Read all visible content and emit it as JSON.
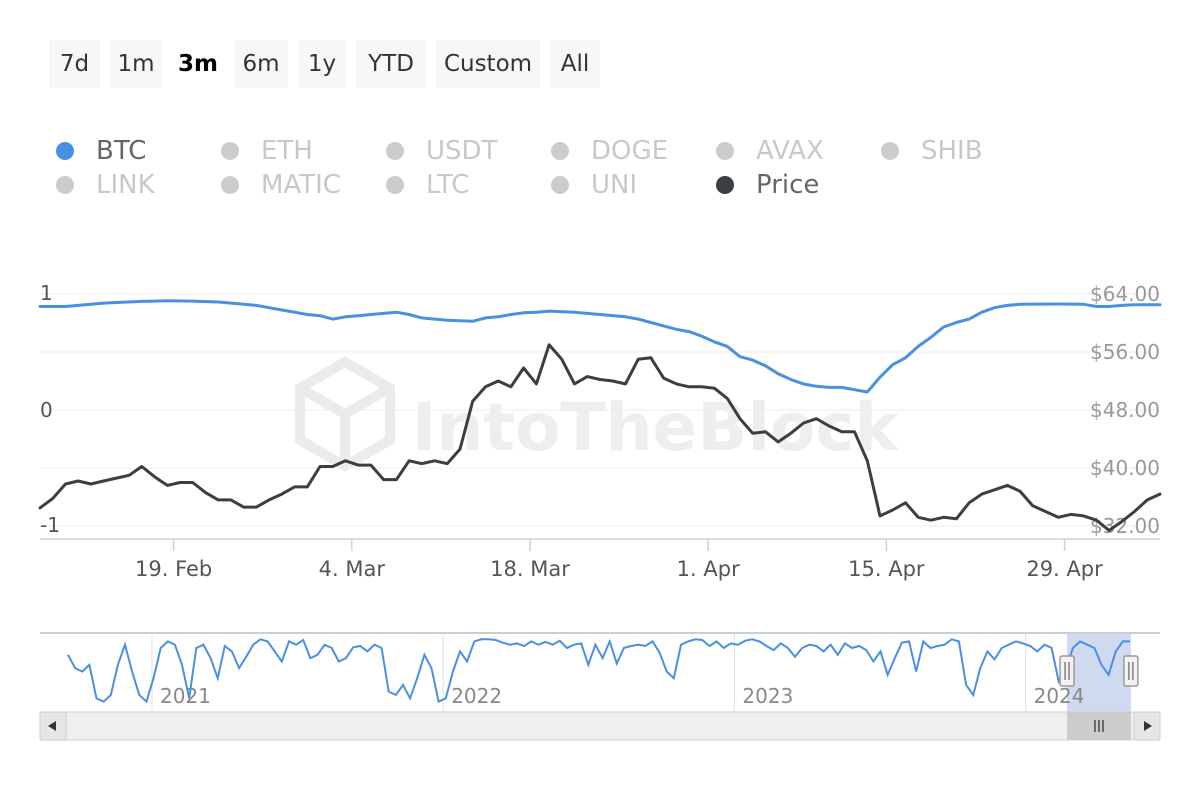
{
  "range_selector": {
    "buttons": [
      "7d",
      "1m",
      "3m",
      "6m",
      "1y",
      "YTD",
      "Custom",
      "All"
    ],
    "selected": "3m"
  },
  "legend": {
    "items": [
      {
        "label": "BTC",
        "color": "#4a90e2",
        "active": true
      },
      {
        "label": "ETH",
        "color": "#cccccc",
        "active": false
      },
      {
        "label": "USDT",
        "color": "#cccccc",
        "active": false
      },
      {
        "label": "DOGE",
        "color": "#cccccc",
        "active": false
      },
      {
        "label": "AVAX",
        "color": "#cccccc",
        "active": false
      },
      {
        "label": "SHIB",
        "color": "#cccccc",
        "active": false
      },
      {
        "label": "LINK",
        "color": "#cccccc",
        "active": false
      },
      {
        "label": "MATIC",
        "color": "#cccccc",
        "active": false
      },
      {
        "label": "LTC",
        "color": "#cccccc",
        "active": false
      },
      {
        "label": "UNI",
        "color": "#cccccc",
        "active": false
      },
      {
        "label": "Price",
        "color": "#3a3f44",
        "active": true
      }
    ]
  },
  "watermark": "IntoTheBlock",
  "chart_data": {
    "type": "line",
    "x_axis": {
      "min": 0,
      "max": 88,
      "ticks": [
        {
          "x": 10.5,
          "label": "19. Feb"
        },
        {
          "x": 24.5,
          "label": "4. Mar"
        },
        {
          "x": 38.5,
          "label": "18. Mar"
        },
        {
          "x": 52.5,
          "label": "1. Apr"
        },
        {
          "x": 66.5,
          "label": "15. Apr"
        },
        {
          "x": 80.5,
          "label": "29. Apr"
        }
      ]
    },
    "y_axis_left": {
      "min": -1.15,
      "max": 1,
      "ticks": [
        {
          "value": 1,
          "label": "1"
        },
        {
          "value": 0,
          "label": "0"
        },
        {
          "value": -1,
          "label": "-1"
        }
      ]
    },
    "y_axis_right": {
      "min": 30,
      "max": 64,
      "ticks": [
        {
          "value": 64,
          "label": "$64.00"
        },
        {
          "value": 56,
          "label": "$56.00"
        },
        {
          "value": 48,
          "label": "$48.00"
        },
        {
          "value": 40,
          "label": "$40.00"
        },
        {
          "value": 32,
          "label": "$32.00"
        }
      ]
    },
    "series": [
      {
        "name": "BTC",
        "color": "#4a90e2",
        "axis": "left",
        "points": [
          [
            0,
            0.89
          ],
          [
            2,
            0.89
          ],
          [
            3,
            0.9
          ],
          [
            4,
            0.91
          ],
          [
            5,
            0.92
          ],
          [
            6,
            0.925
          ],
          [
            7,
            0.93
          ],
          [
            8,
            0.935
          ],
          [
            9,
            0.938
          ],
          [
            10,
            0.94
          ],
          [
            12,
            0.938
          ],
          [
            14,
            0.93
          ],
          [
            15,
            0.92
          ],
          [
            16,
            0.91
          ],
          [
            17,
            0.9
          ],
          [
            18,
            0.88
          ],
          [
            19,
            0.86
          ],
          [
            20,
            0.84
          ],
          [
            21,
            0.82
          ],
          [
            22,
            0.81
          ],
          [
            23,
            0.78
          ],
          [
            24,
            0.8
          ],
          [
            25,
            0.81
          ],
          [
            26,
            0.82
          ],
          [
            27,
            0.83
          ],
          [
            28,
            0.84
          ],
          [
            29,
            0.82
          ],
          [
            30,
            0.79
          ],
          [
            31,
            0.78
          ],
          [
            32,
            0.77
          ],
          [
            33,
            0.765
          ],
          [
            34,
            0.76
          ],
          [
            35,
            0.79
          ],
          [
            36,
            0.8
          ],
          [
            37,
            0.82
          ],
          [
            38,
            0.835
          ],
          [
            39,
            0.84
          ],
          [
            40,
            0.85
          ],
          [
            42,
            0.84
          ],
          [
            43,
            0.83
          ],
          [
            44,
            0.82
          ],
          [
            46,
            0.8
          ],
          [
            47,
            0.78
          ],
          [
            48,
            0.75
          ],
          [
            49,
            0.72
          ],
          [
            50,
            0.69
          ],
          [
            51,
            0.67
          ],
          [
            52,
            0.63
          ],
          [
            53,
            0.58
          ],
          [
            54,
            0.54
          ],
          [
            55,
            0.45
          ],
          [
            56,
            0.42
          ],
          [
            57,
            0.37
          ],
          [
            58,
            0.3
          ],
          [
            59,
            0.25
          ],
          [
            60,
            0.21
          ],
          [
            61,
            0.19
          ],
          [
            62,
            0.18
          ],
          [
            63,
            0.18
          ],
          [
            64,
            0.16
          ],
          [
            65,
            0.14
          ],
          [
            66,
            0.27
          ],
          [
            67,
            0.38
          ],
          [
            68,
            0.44
          ],
          [
            69,
            0.54
          ],
          [
            70,
            0.62
          ],
          [
            71,
            0.71
          ],
          [
            72,
            0.75
          ],
          [
            73,
            0.78
          ],
          [
            74,
            0.84
          ],
          [
            75,
            0.88
          ],
          [
            76,
            0.9
          ],
          [
            77,
            0.91
          ],
          [
            80,
            0.912
          ],
          [
            82,
            0.91
          ],
          [
            83,
            0.89
          ],
          [
            84,
            0.89
          ],
          [
            85,
            0.9
          ],
          [
            86,
            0.905
          ],
          [
            88,
            0.905
          ]
        ]
      },
      {
        "name": "Price",
        "color": "#3a3f44",
        "axis": "right",
        "points": [
          [
            0,
            34.5
          ],
          [
            1,
            35.8
          ],
          [
            2,
            37.8
          ],
          [
            3,
            38.2
          ],
          [
            4,
            37.8
          ],
          [
            5,
            38.2
          ],
          [
            6,
            38.6
          ],
          [
            7,
            39.0
          ],
          [
            8,
            40.2
          ],
          [
            9,
            38.8
          ],
          [
            10,
            37.6
          ],
          [
            11,
            38.0
          ],
          [
            12,
            38.0
          ],
          [
            13,
            36.6
          ],
          [
            14,
            35.6
          ],
          [
            15,
            35.6
          ],
          [
            16,
            34.6
          ],
          [
            17,
            34.6
          ],
          [
            18,
            35.6
          ],
          [
            19,
            36.4
          ],
          [
            20,
            37.4
          ],
          [
            21,
            37.4
          ],
          [
            22,
            40.2
          ],
          [
            23,
            40.2
          ],
          [
            24,
            41.0
          ],
          [
            25,
            40.4
          ],
          [
            26,
            40.4
          ],
          [
            27,
            38.4
          ],
          [
            28,
            38.4
          ],
          [
            29,
            41.0
          ],
          [
            30,
            40.6
          ],
          [
            31,
            41.0
          ],
          [
            32,
            40.6
          ],
          [
            33,
            42.6
          ],
          [
            34,
            49.2
          ],
          [
            35,
            51.2
          ],
          [
            36,
            52.0
          ],
          [
            37,
            51.2
          ],
          [
            38,
            53.8
          ],
          [
            39,
            51.6
          ],
          [
            40,
            57.0
          ],
          [
            41,
            55.0
          ],
          [
            42,
            51.6
          ],
          [
            43,
            52.6
          ],
          [
            44,
            52.2
          ],
          [
            45,
            52.0
          ],
          [
            46,
            51.6
          ],
          [
            47,
            55.0
          ],
          [
            48,
            55.2
          ],
          [
            49,
            52.4
          ],
          [
            50,
            51.6
          ],
          [
            51,
            51.2
          ],
          [
            52,
            51.2
          ],
          [
            53,
            51.0
          ],
          [
            54,
            49.6
          ],
          [
            55,
            46.8
          ],
          [
            56,
            44.8
          ],
          [
            57,
            45.0
          ],
          [
            58,
            43.6
          ],
          [
            59,
            44.8
          ],
          [
            60,
            46.2
          ],
          [
            61,
            46.8
          ],
          [
            62,
            45.8
          ],
          [
            63,
            45.0
          ],
          [
            64,
            45.0
          ],
          [
            65,
            41.0
          ],
          [
            66,
            33.4
          ],
          [
            67,
            34.2
          ],
          [
            68,
            35.2
          ],
          [
            69,
            33.2
          ],
          [
            70,
            32.8
          ],
          [
            71,
            33.2
          ],
          [
            72,
            33.0
          ],
          [
            73,
            35.2
          ],
          [
            74,
            36.4
          ],
          [
            75,
            37.0
          ],
          [
            76,
            37.6
          ],
          [
            77,
            36.8
          ],
          [
            78,
            34.8
          ],
          [
            79,
            34.0
          ],
          [
            80,
            33.2
          ],
          [
            81,
            33.6
          ],
          [
            82,
            33.4
          ],
          [
            83,
            32.8
          ],
          [
            84,
            31.4
          ],
          [
            85,
            32.6
          ],
          [
            86,
            34.0
          ],
          [
            87,
            35.6
          ],
          [
            88,
            36.4
          ]
        ]
      }
    ]
  },
  "navigator": {
    "labels": [
      {
        "pos": 0.1,
        "label": "2021"
      },
      {
        "pos": 0.36,
        "label": "2022"
      },
      {
        "pos": 0.62,
        "label": "2023"
      },
      {
        "pos": 0.88,
        "label": "2024"
      }
    ],
    "window": [
      0.917,
      0.974
    ],
    "series": [
      0.75,
      0.55,
      0.5,
      0.6,
      0.1,
      0.05,
      0.15,
      0.6,
      0.9,
      0.5,
      0.15,
      0.05,
      0.4,
      0.85,
      0.95,
      0.9,
      0.6,
      0.1,
      0.85,
      0.9,
      0.7,
      0.4,
      0.88,
      0.8,
      0.55,
      0.72,
      0.9,
      0.98,
      0.95,
      0.8,
      0.65,
      0.95,
      0.9,
      0.97,
      0.7,
      0.75,
      0.9,
      0.85,
      0.65,
      0.7,
      0.86,
      0.88,
      0.8,
      0.9,
      0.85,
      0.2,
      0.15,
      0.3,
      0.1,
      0.4,
      0.75,
      0.55,
      0.05,
      0.1,
      0.5,
      0.8,
      0.65,
      0.95,
      0.98,
      0.98,
      0.97,
      0.93,
      0.9,
      0.92,
      0.88,
      0.95,
      0.9,
      0.94,
      0.9,
      0.96,
      0.85,
      0.9,
      0.92,
      0.6,
      0.9,
      0.7,
      0.95,
      0.62,
      0.85,
      0.88,
      0.9,
      0.88,
      0.95,
      0.78,
      0.5,
      0.4,
      0.9,
      0.95,
      0.98,
      0.97,
      0.88,
      0.95,
      0.85,
      0.92,
      0.9,
      0.96,
      0.98,
      0.95,
      0.88,
      0.82,
      0.92,
      0.85,
      0.72,
      0.85,
      0.9,
      0.88,
      0.8,
      0.9,
      0.75,
      0.92,
      0.85,
      0.88,
      0.82,
      0.65,
      0.8,
      0.45,
      0.7,
      0.93,
      0.95,
      0.5,
      0.95,
      0.85,
      0.88,
      0.9,
      0.98,
      0.95,
      0.3,
      0.15,
      0.55,
      0.8,
      0.68,
      0.85,
      0.9,
      0.95,
      0.92,
      0.88,
      0.8,
      0.9,
      0.85,
      0.35,
      0.55,
      0.85,
      0.95,
      0.9,
      0.85,
      0.6,
      0.45,
      0.8,
      0.95,
      0.95
    ]
  }
}
